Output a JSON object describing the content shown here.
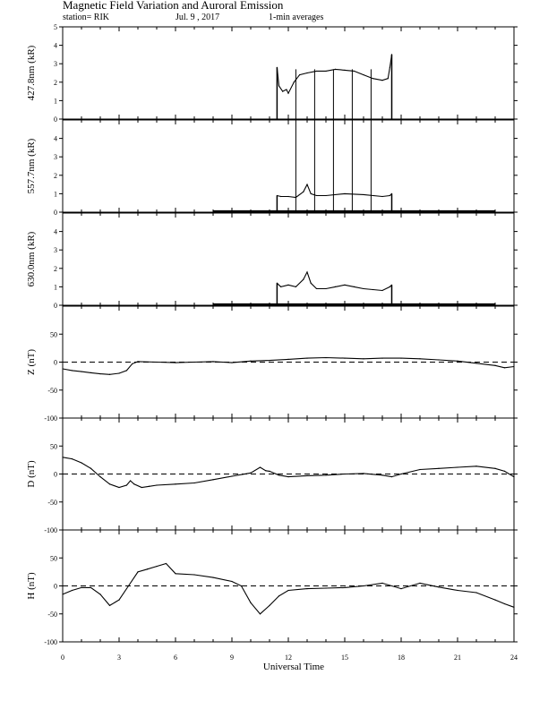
{
  "header": {
    "title": "Magnetic Field Variation and Auroral Emission",
    "station": "station= RIK",
    "date": "Jul. 9 , 2017",
    "averaging": "1-min averages"
  },
  "chart_data": [
    {
      "type": "line",
      "ylabel": "427.8nm (kR)",
      "ylim": [
        0,
        5
      ],
      "yticks": [
        "0",
        "1",
        "2",
        "3",
        "4",
        "5"
      ],
      "xlim": [
        0,
        24
      ],
      "series": [
        {
          "x": [
            11.4,
            11.5,
            11.7,
            11.9,
            12.0,
            12.3,
            12.6,
            13.0,
            13.5,
            14.0,
            14.5,
            15.0,
            15.5,
            16.0,
            16.5,
            17.0,
            17.3,
            17.4,
            17.5
          ],
          "values": [
            2.8,
            1.8,
            1.5,
            1.6,
            1.4,
            2.0,
            2.4,
            2.5,
            2.6,
            2.6,
            2.7,
            2.65,
            2.6,
            2.4,
            2.2,
            2.1,
            2.2,
            2.8,
            3.5
          ]
        }
      ],
      "gaps_x": [
        12.4,
        13.4,
        14.4,
        15.4,
        16.4
      ]
    },
    {
      "type": "line",
      "ylabel": "557.7nm (kR)",
      "ylim": [
        0,
        5
      ],
      "yticks": [
        "0",
        "1",
        "2",
        "3",
        "4"
      ],
      "xlim": [
        0,
        24
      ],
      "baseline_x": [
        8,
        23
      ],
      "series": [
        {
          "x": [
            11.4,
            11.6,
            12.0,
            12.4,
            12.8,
            13.0,
            13.2,
            13.5,
            14.0,
            15.0,
            16.0,
            17.0,
            17.4,
            17.5
          ],
          "values": [
            0.9,
            0.85,
            0.85,
            0.8,
            1.1,
            1.5,
            1.0,
            0.9,
            0.9,
            1.0,
            0.95,
            0.85,
            0.9,
            1.0
          ]
        }
      ],
      "gaps_x": [
        12.4,
        13.4,
        14.4,
        15.4,
        16.4
      ]
    },
    {
      "type": "line",
      "ylabel": "630.0nm (kR)",
      "ylim": [
        0,
        5
      ],
      "yticks": [
        "0",
        "1",
        "2",
        "3",
        "4"
      ],
      "xlim": [
        0,
        24
      ],
      "baseline_x": [
        8,
        23
      ],
      "series": [
        {
          "x": [
            11.4,
            11.6,
            12.0,
            12.4,
            12.8,
            13.0,
            13.2,
            13.5,
            14.0,
            14.5,
            15.0,
            15.5,
            16.0,
            16.5,
            17.0,
            17.4,
            17.5
          ],
          "values": [
            1.2,
            1.0,
            1.1,
            1.0,
            1.4,
            1.8,
            1.2,
            0.9,
            0.9,
            1.0,
            1.1,
            1.0,
            0.9,
            0.85,
            0.8,
            1.0,
            1.1
          ]
        }
      ]
    },
    {
      "type": "line",
      "ylabel": "Z (nT)",
      "ylim": [
        -100,
        100
      ],
      "yticks": [
        "50",
        "0",
        "-50",
        "-100"
      ],
      "xlim": [
        0,
        24
      ],
      "series": [
        {
          "x": [
            0,
            0.5,
            1.0,
            1.5,
            2.0,
            2.5,
            3.0,
            3.4,
            3.7,
            4.0,
            5,
            6,
            7,
            8,
            9,
            10,
            11,
            12,
            13,
            14,
            15,
            16,
            17,
            18,
            19,
            20,
            21,
            22,
            23,
            23.5,
            24
          ],
          "values": [
            -12,
            -15,
            -17,
            -19,
            -21,
            -22,
            -20,
            -15,
            -3,
            1,
            0,
            -1,
            0,
            1,
            -1,
            2,
            3,
            5,
            7,
            8,
            7,
            6,
            7,
            7,
            6,
            4,
            2,
            -2,
            -6,
            -10,
            -8
          ]
        }
      ]
    },
    {
      "type": "line",
      "ylabel": "D (nT)",
      "ylim": [
        -100,
        100
      ],
      "yticks": [
        "50",
        "0",
        "-50",
        "-100"
      ],
      "xlim": [
        0,
        24
      ],
      "series": [
        {
          "x": [
            0,
            0.5,
            1.0,
            1.5,
            2.0,
            2.5,
            3.0,
            3.4,
            3.6,
            3.8,
            4.2,
            4.6,
            5,
            6,
            7,
            8,
            9,
            10,
            10.5,
            10.8,
            11,
            11.5,
            12,
            13,
            14,
            15,
            16,
            17,
            17.5,
            18,
            19,
            20,
            21,
            22,
            23,
            23.5,
            24
          ],
          "values": [
            30,
            27,
            20,
            10,
            -5,
            -18,
            -24,
            -20,
            -12,
            -18,
            -24,
            -22,
            -20,
            -18,
            -16,
            -10,
            -4,
            2,
            12,
            6,
            5,
            -2,
            -5,
            -3,
            -2,
            0,
            1,
            -2,
            -5,
            0,
            8,
            10,
            12,
            14,
            10,
            5,
            -5
          ]
        }
      ]
    },
    {
      "type": "line",
      "ylabel": "H (nT)",
      "ylim": [
        -100,
        100
      ],
      "yticks": [
        "50",
        "0",
        "-50",
        "-100"
      ],
      "xlim": [
        0,
        24
      ],
      "series": [
        {
          "x": [
            0,
            0.5,
            1.0,
            1.5,
            2.0,
            2.5,
            3.0,
            3.5,
            4.0,
            4.5,
            5.0,
            5.5,
            6,
            7,
            8,
            9,
            9.5,
            10,
            10.5,
            11,
            11.5,
            12,
            13,
            14,
            15,
            16,
            17,
            18,
            19,
            20,
            21,
            22,
            23,
            23.5,
            24
          ],
          "values": [
            -15,
            -8,
            -3,
            -3,
            -15,
            -35,
            -25,
            0,
            25,
            30,
            35,
            40,
            22,
            20,
            15,
            8,
            0,
            -30,
            -50,
            -35,
            -18,
            -8,
            -5,
            -4,
            -3,
            0,
            5,
            -5,
            5,
            -2,
            -8,
            -12,
            -25,
            -32,
            -38
          ]
        }
      ]
    }
  ],
  "xaxis": {
    "label": "Universal Time",
    "ticks": [
      "0",
      "3",
      "6",
      "9",
      "12",
      "15",
      "18",
      "21",
      "24"
    ]
  }
}
